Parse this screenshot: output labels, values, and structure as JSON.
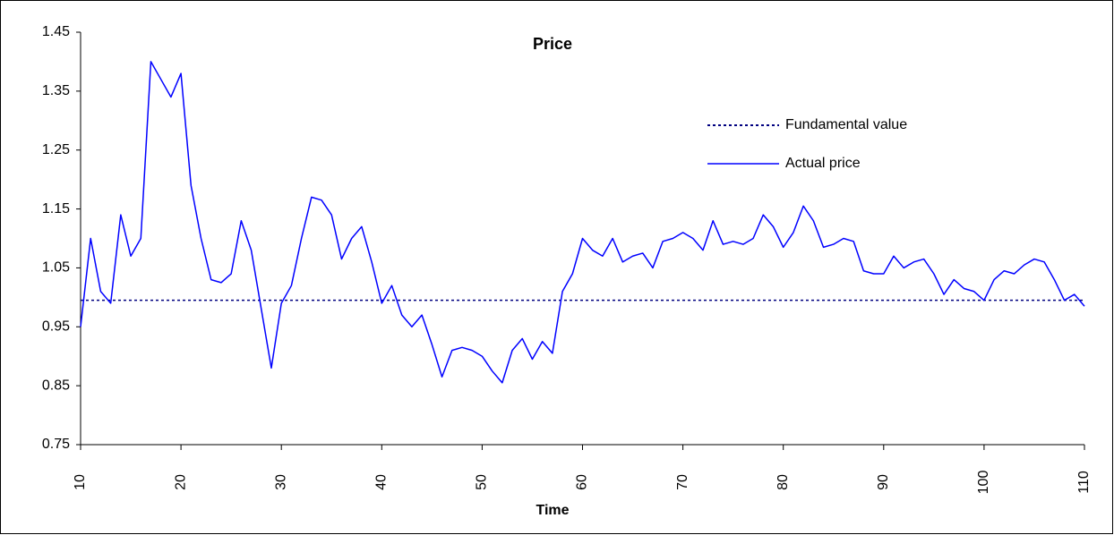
{
  "chart_data": {
    "type": "line",
    "title": "Price",
    "x_label": "Time",
    "x": [
      10,
      11,
      12,
      13,
      14,
      15,
      16,
      17,
      18,
      19,
      20,
      21,
      22,
      23,
      24,
      25,
      26,
      27,
      28,
      29,
      30,
      31,
      32,
      33,
      34,
      35,
      36,
      37,
      38,
      39,
      40,
      41,
      42,
      43,
      44,
      45,
      46,
      47,
      48,
      49,
      50,
      51,
      52,
      53,
      54,
      55,
      56,
      57,
      58,
      59,
      60,
      61,
      62,
      63,
      64,
      65,
      66,
      67,
      68,
      69,
      70,
      71,
      72,
      73,
      74,
      75,
      76,
      77,
      78,
      79,
      80,
      81,
      82,
      83,
      84,
      85,
      86,
      87,
      88,
      89,
      90,
      91,
      92,
      93,
      94,
      95,
      96,
      97,
      98,
      99,
      100,
      101,
      102,
      103,
      104,
      105,
      106,
      107,
      108,
      109,
      110
    ],
    "series": [
      {
        "name": "Actual price",
        "color": "#0000ff",
        "values": [
          0.95,
          1.1,
          1.01,
          0.99,
          1.14,
          1.07,
          1.1,
          1.4,
          1.37,
          1.34,
          1.38,
          1.19,
          1.1,
          1.03,
          1.025,
          1.04,
          1.13,
          1.08,
          0.98,
          0.88,
          0.99,
          1.02,
          1.1,
          1.17,
          1.165,
          1.14,
          1.065,
          1.1,
          1.12,
          1.06,
          0.99,
          1.02,
          0.97,
          0.95,
          0.97,
          0.92,
          0.865,
          0.91,
          0.915,
          0.91,
          0.9,
          0.875,
          0.855,
          0.91,
          0.93,
          0.895,
          0.925,
          0.905,
          1.01,
          1.04,
          1.1,
          1.08,
          1.07,
          1.1,
          1.06,
          1.07,
          1.075,
          1.05,
          1.095,
          1.1,
          1.11,
          1.1,
          1.08,
          1.13,
          1.09,
          1.095,
          1.09,
          1.1,
          1.14,
          1.12,
          1.085,
          1.11,
          1.155,
          1.13,
          1.085,
          1.09,
          1.1,
          1.095,
          1.045,
          1.04,
          1.04,
          1.07,
          1.05,
          1.06,
          1.065,
          1.04,
          1.005,
          1.03,
          1.015,
          1.01,
          0.995,
          1.03,
          1.045,
          1.04,
          1.055,
          1.065,
          1.06,
          1.03,
          0.995,
          1.005,
          0.985
        ]
      }
    ],
    "reference": {
      "name": "Fundamental value",
      "color": "#000080",
      "value": 0.995
    },
    "xlim": [
      10,
      110
    ],
    "xticks": [
      10,
      20,
      30,
      40,
      50,
      60,
      70,
      80,
      90,
      100,
      110
    ],
    "ylim": [
      0.75,
      1.45
    ],
    "yticks": [
      0.75,
      0.85,
      0.95,
      1.05,
      1.15,
      1.25,
      1.35,
      1.45
    ],
    "grid": false
  }
}
